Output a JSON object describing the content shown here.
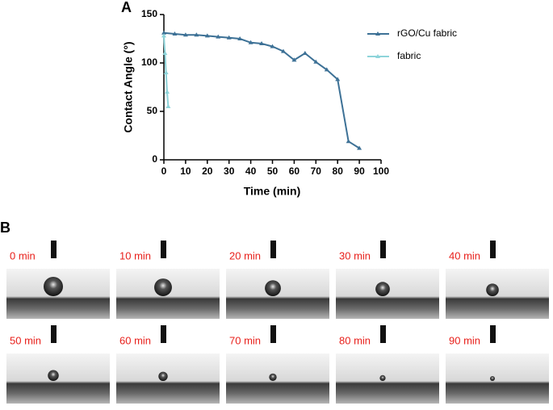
{
  "chart_data": {
    "type": "line",
    "xlabel": "Time (min)",
    "ylabel": "Contact Angle (°)",
    "xlim": [
      0,
      100
    ],
    "xticks": [
      0,
      10,
      20,
      30,
      40,
      50,
      60,
      70,
      80,
      90,
      100
    ],
    "ylim": [
      0,
      150
    ],
    "yticks": [
      0,
      50,
      100,
      150
    ],
    "legend": "upper right",
    "series": [
      {
        "name": "rGO/Cu fabric",
        "color": "#3d7196",
        "x": [
          0,
          5,
          10,
          15,
          20,
          25,
          30,
          35,
          40,
          45,
          50,
          55,
          60,
          65,
          70,
          75,
          80,
          85,
          90
        ],
        "values": [
          131,
          130,
          129,
          129,
          128,
          127,
          126,
          125,
          121,
          120,
          117,
          112,
          103,
          110,
          101,
          93,
          83,
          19,
          12
        ]
      },
      {
        "name": "fabric",
        "color": "#8ed4da",
        "x": [
          0,
          0.5,
          1,
          1.5,
          2
        ],
        "values": [
          128,
          110,
          90,
          70,
          55
        ]
      }
    ]
  },
  "panel_labels": [
    "A",
    "B"
  ],
  "frames": [
    "0 min",
    "10 min",
    "20 min",
    "30 min",
    "40 min",
    "50 min",
    "60 min",
    "70 min",
    "80 min",
    "90 min"
  ]
}
